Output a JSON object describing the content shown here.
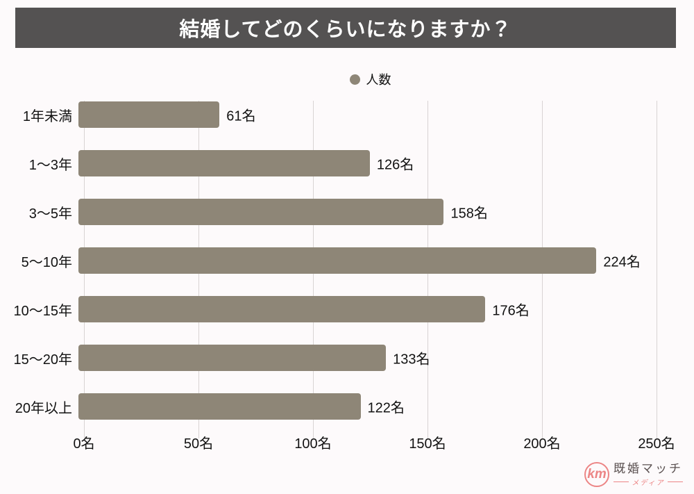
{
  "header": {
    "title": "結婚してどのくらいになりますか？"
  },
  "legend": {
    "label": "人数"
  },
  "chart_data": {
    "type": "bar",
    "orientation": "horizontal",
    "title": "結婚してどのくらいになりますか？",
    "categories": [
      "1年未満",
      "1〜3年",
      "3〜5年",
      "5〜10年",
      "10〜15年",
      "15〜20年",
      "20年以上"
    ],
    "series": [
      {
        "name": "人数",
        "values": [
          61,
          126,
          158,
          224,
          176,
          133,
          122
        ]
      }
    ],
    "data_labels": [
      "61名",
      "126名",
      "158名",
      "224名",
      "176名",
      "133名",
      "122名"
    ],
    "value_suffix": "名",
    "xlim": [
      0,
      250
    ],
    "x_ticks": [
      0,
      50,
      100,
      150,
      200,
      250
    ],
    "x_tick_labels": [
      "0名",
      "50名",
      "100名",
      "150名",
      "200名",
      "250名"
    ],
    "grid": "vertical-gridlines",
    "legend_position": "top-center",
    "bar_color": "#8e8677"
  },
  "footer": {
    "logo_monogram": "km",
    "brand_name": "既婚マッチ",
    "brand_subtitle": "メディア"
  },
  "colors": {
    "page_bg": "#fdfafb",
    "banner_bg": "#545252",
    "banner_text": "#ffffff",
    "bar": "#8e8677",
    "gridline": "#d8d3d3",
    "text": "#121212",
    "logo_accent": "#ec8585",
    "logo_text": "#5b5151"
  }
}
